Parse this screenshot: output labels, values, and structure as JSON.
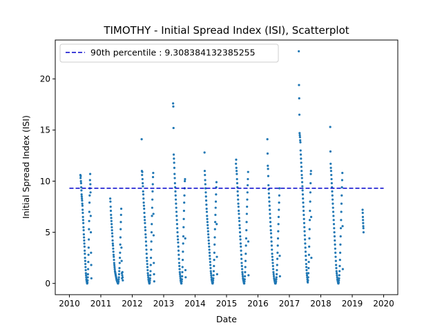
{
  "chart_data": {
    "type": "scatter",
    "title": "TIMOTHY - Initial Spread Index (ISI), Scatterplot",
    "xlabel": "Date",
    "ylabel": "Initial Spread Index (ISI)",
    "xlim": [
      2009.55,
      2020.45
    ],
    "ylim": [
      -1.1,
      23.8
    ],
    "x_ticks": [
      2010,
      2011,
      2012,
      2013,
      2014,
      2015,
      2016,
      2017,
      2018,
      2019,
      2020
    ],
    "x_tick_labels": [
      "2010",
      "2011",
      "2012",
      "2013",
      "2014",
      "2015",
      "2016",
      "2017",
      "2018",
      "2019",
      "2020"
    ],
    "y_ticks": [
      0,
      5,
      10,
      15,
      20
    ],
    "y_tick_labels": [
      "0",
      "5",
      "10",
      "15",
      "20"
    ],
    "grid": false,
    "legend_position": "top-left",
    "series": [
      {
        "name": "",
        "color": "#1f77b4",
        "season_points": [
          {
            "year": 2010,
            "x_start": 2010.35,
            "x_end": 2010.7,
            "values": [
              10.6,
              10.3,
              10.5,
              10.0,
              9.8,
              9.4,
              9.1,
              8.7,
              8.5,
              8.3,
              8.1,
              7.8,
              7.6,
              7.2,
              6.9,
              6.5,
              6.2,
              5.9,
              5.5,
              5.2,
              4.8,
              4.5,
              4.2,
              3.9,
              3.6,
              3.2,
              2.9,
              2.5,
              2.2,
              1.9,
              1.6,
              1.3,
              1.0,
              0.8,
              0.6,
              0.4,
              0.3,
              0.2,
              0.1,
              0.0,
              0.0,
              0.1,
              0.3,
              0.6,
              0.9,
              1.4,
              2.1,
              2.8,
              3.5,
              4.3,
              5.3,
              6.1,
              7.0,
              7.9,
              8.6,
              9.3,
              10.1,
              10.7,
              9.7,
              8.9,
              6.6,
              5.0,
              3.0,
              1.8,
              0.5
            ]
          },
          {
            "year": 2011,
            "x_start": 2011.3,
            "x_end": 2011.7,
            "values": [
              8.3,
              8.0,
              7.5,
              7.1,
              6.7,
              6.4,
              6.1,
              5.8,
              5.5,
              5.2,
              4.9,
              4.6,
              4.2,
              3.9,
              3.7,
              3.4,
              3.1,
              2.8,
              2.6,
              2.3,
              2.0,
              1.8,
              1.6,
              1.4,
              1.2,
              1.1,
              1.0,
              0.9,
              0.8,
              0.7,
              0.6,
              0.5,
              0.4,
              0.3,
              0.3,
              0.2,
              0.2,
              0.1,
              0.1,
              0.0,
              0.0,
              0.1,
              0.2,
              0.4,
              0.6,
              0.9,
              1.2,
              1.5,
              2.0,
              2.5,
              3.0,
              3.8,
              4.5,
              5.3,
              6.0,
              6.7,
              7.3,
              3.5,
              2.2,
              1.0,
              0.5,
              0.8,
              1.1,
              0.6,
              0.3
            ]
          },
          {
            "year": 2012,
            "x_start": 2012.3,
            "x_end": 2012.7,
            "values": [
              14.1,
              11.0,
              10.6,
              10.9,
              10.2,
              9.8,
              9.5,
              9.0,
              8.7,
              8.3,
              7.9,
              7.6,
              7.3,
              6.9,
              6.5,
              6.2,
              5.9,
              5.5,
              5.2,
              4.8,
              4.5,
              4.1,
              3.7,
              3.3,
              2.9,
              2.5,
              2.2,
              1.9,
              1.6,
              1.3,
              1.0,
              0.8,
              0.6,
              0.4,
              0.3,
              0.2,
              0.1,
              0.0,
              0.0,
              0.1,
              0.3,
              0.5,
              0.8,
              1.2,
              1.8,
              2.5,
              3.3,
              4.1,
              5.0,
              5.8,
              6.6,
              7.4,
              8.2,
              9.0,
              9.7,
              10.4,
              10.8,
              6.8,
              4.7,
              2.0,
              0.9,
              0.2
            ]
          },
          {
            "year": 2013,
            "x_start": 2013.3,
            "x_end": 2013.7,
            "values": [
              17.6,
              17.3,
              15.2,
              12.6,
              12.2,
              11.8,
              11.3,
              10.7,
              10.3,
              9.8,
              9.4,
              9.0,
              8.6,
              8.2,
              7.8,
              7.4,
              7.0,
              6.6,
              6.2,
              5.8,
              5.4,
              5.0,
              4.6,
              4.3,
              4.0,
              3.6,
              3.2,
              2.8,
              2.4,
              2.0,
              1.7,
              1.4,
              1.1,
              0.9,
              0.7,
              0.5,
              0.3,
              0.2,
              0.1,
              0.0,
              0.0,
              0.2,
              0.4,
              0.7,
              1.1,
              1.6,
              2.3,
              3.1,
              3.9,
              4.6,
              5.5,
              6.3,
              7.1,
              7.9,
              8.6,
              9.3,
              10.0,
              10.2,
              4.4,
              1.3,
              0.6
            ]
          },
          {
            "year": 2014,
            "x_start": 2014.3,
            "x_end": 2014.7,
            "values": [
              12.8,
              11.0,
              10.6,
              10.1,
              9.7,
              9.3,
              8.9,
              8.5,
              8.1,
              7.7,
              7.3,
              7.0,
              6.6,
              6.3,
              6.0,
              5.7,
              5.4,
              5.1,
              4.8,
              4.5,
              4.2,
              3.9,
              3.6,
              3.3,
              3.0,
              2.7,
              2.4,
              2.1,
              1.8,
              1.5,
              1.2,
              1.0,
              0.8,
              0.6,
              0.4,
              0.3,
              0.2,
              0.1,
              0.0,
              0.0,
              0.1,
              0.3,
              0.5,
              0.8,
              1.2,
              1.7,
              2.3,
              3.0,
              3.8,
              4.5,
              5.3,
              6.0,
              6.7,
              7.4,
              8.0,
              8.7,
              9.4,
              9.9,
              5.8,
              2.6,
              0.9
            ]
          },
          {
            "year": 2015,
            "x_start": 2015.3,
            "x_end": 2015.7,
            "values": [
              11.7,
              12.1,
              11.3,
              11.0,
              10.7,
              10.2,
              9.8,
              9.4,
              9.0,
              8.6,
              8.2,
              7.8,
              7.5,
              7.1,
              6.8,
              6.4,
              6.1,
              5.7,
              5.4,
              5.0,
              4.6,
              4.3,
              3.9,
              3.6,
              3.2,
              2.8,
              2.4,
              2.0,
              1.7,
              1.4,
              1.1,
              0.9,
              0.7,
              0.5,
              0.4,
              0.3,
              0.2,
              0.1,
              0.0,
              0.0,
              0.2,
              0.4,
              0.7,
              1.1,
              1.6,
              2.2,
              2.9,
              3.7,
              4.4,
              5.2,
              6.0,
              6.8,
              7.5,
              8.2,
              8.9,
              9.6,
              10.2,
              10.9,
              4.1,
              0.8
            ]
          },
          {
            "year": 2016,
            "x_start": 2016.3,
            "x_end": 2016.7,
            "values": [
              14.1,
              12.7,
              11.5,
              11.2,
              10.5,
              9.6,
              9.2,
              8.8,
              8.4,
              8.0,
              7.6,
              7.2,
              6.8,
              6.4,
              6.0,
              5.6,
              5.2,
              4.9,
              4.5,
              4.1,
              3.7,
              3.3,
              2.9,
              2.6,
              2.3,
              2.0,
              1.7,
              1.4,
              1.1,
              0.9,
              0.7,
              0.5,
              0.4,
              0.3,
              0.2,
              0.1,
              0.0,
              0.0,
              0.0,
              0.1,
              0.2,
              0.4,
              0.6,
              0.9,
              1.3,
              1.8,
              2.4,
              3.0,
              3.7,
              4.4,
              5.1,
              5.8,
              6.5,
              7.2,
              7.9,
              8.6,
              9.3,
              2.7,
              0.7
            ]
          },
          {
            "year": 2017,
            "x_start": 2017.3,
            "x_end": 2017.7,
            "values": [
              22.7,
              19.4,
              18.1,
              16.5,
              14.7,
              14.5,
              14.3,
              14.0,
              13.8,
              13.0,
              12.6,
              12.2,
              11.8,
              11.4,
              11.0,
              10.6,
              10.3,
              9.9,
              9.5,
              9.1,
              8.7,
              8.3,
              7.9,
              7.5,
              7.1,
              6.7,
              6.3,
              5.9,
              5.5,
              5.1,
              4.7,
              4.3,
              3.9,
              3.5,
              3.1,
              2.7,
              2.3,
              1.9,
              1.6,
              1.3,
              1.0,
              0.8,
              0.6,
              0.4,
              0.2,
              0.1,
              0.3,
              0.6,
              1.0,
              1.5,
              2.1,
              2.8,
              3.6,
              4.4,
              5.3,
              6.2,
              7.1,
              8.0,
              8.9,
              9.8,
              10.7,
              11.0,
              6.5,
              2.5
            ]
          },
          {
            "year": 2018,
            "x_start": 2018.3,
            "x_end": 2018.7,
            "values": [
              15.3,
              12.9,
              11.7,
              11.3,
              11.0,
              10.6,
              10.2,
              9.8,
              9.4,
              9.0,
              8.6,
              8.2,
              7.8,
              7.4,
              7.0,
              6.6,
              6.2,
              5.8,
              5.4,
              5.0,
              4.6,
              4.2,
              3.8,
              3.4,
              3.0,
              2.6,
              2.2,
              1.8,
              1.5,
              1.2,
              1.0,
              0.8,
              0.6,
              0.4,
              0.3,
              0.2,
              0.1,
              0.0,
              0.0,
              0.1,
              0.3,
              0.5,
              0.8,
              1.2,
              1.7,
              2.3,
              3.0,
              3.8,
              4.6,
              5.4,
              6.2,
              7.0,
              7.8,
              8.6,
              9.4,
              10.1,
              10.8,
              5.6,
              1.4
            ]
          },
          {
            "year": 2019,
            "x_start": 2019.33,
            "x_end": 2019.36,
            "values": [
              7.2,
              6.9,
              6.5,
              6.2,
              5.9,
              5.6,
              5.4,
              5.0
            ]
          }
        ]
      }
    ],
    "reference_lines": [
      {
        "type": "horizontal",
        "y": 9.308384132385255,
        "style": "dashed",
        "color": "#0000cc",
        "label": "90th percentile : 9.308384132385255"
      }
    ]
  }
}
